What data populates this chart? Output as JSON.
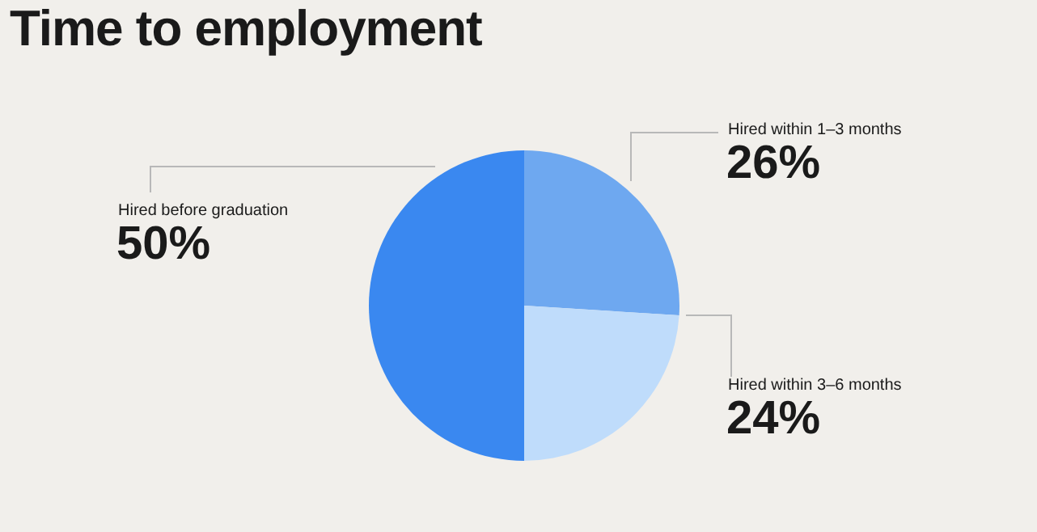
{
  "chart_data": {
    "type": "pie",
    "title": "Time to employment",
    "categories": [
      "Hired within 1–3 months",
      "Hired within 3–6 months",
      "Hired before graduation"
    ],
    "values": [
      26,
      24,
      50
    ],
    "value_labels": [
      "26%",
      "24%",
      "50%"
    ],
    "colors": [
      "#6ea8f0",
      "#bfdcfb",
      "#3a88f0"
    ],
    "legend": false
  }
}
